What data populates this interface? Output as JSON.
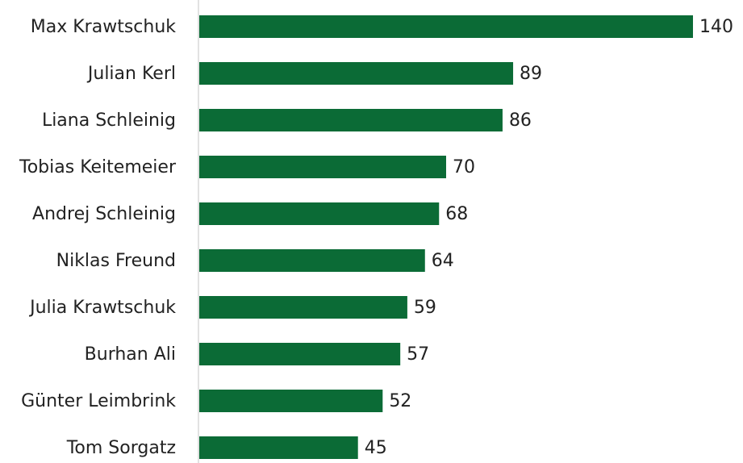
{
  "chart_data": {
    "type": "bar",
    "orientation": "horizontal",
    "categories": [
      "Max Krawtschuk",
      "Julian Kerl",
      "Liana Schleinig",
      "Tobias Keitemeier",
      "Andrej Schleinig",
      "Niklas Freund",
      "Julia Krawtschuk",
      "Burhan Ali",
      "Günter Leimbrink",
      "Tom Sorgatz"
    ],
    "values": [
      140,
      89,
      86,
      70,
      68,
      64,
      59,
      57,
      52,
      45
    ],
    "color": "#0b6b36"
  }
}
